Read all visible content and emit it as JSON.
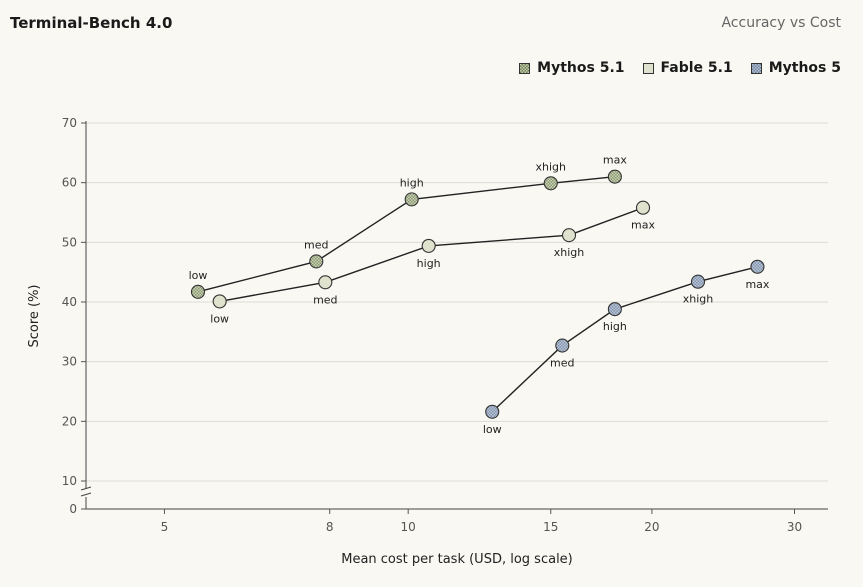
{
  "header": {
    "title": "Terminal-Bench 4.0",
    "subtitle": "Accuracy vs Cost"
  },
  "chart_data": {
    "type": "scatter",
    "title": "Terminal-Bench 4.0",
    "subtitle": "Accuracy vs Cost",
    "xlabel": "Mean cost per task (USD, log scale)",
    "ylabel": "Score (%)",
    "x_scale": "log",
    "xlim": [
      4,
      33
    ],
    "ylim": [
      0,
      70
    ],
    "y_axis_break": [
      0,
      10
    ],
    "x_ticks": [
      5,
      8,
      10,
      15,
      20,
      30
    ],
    "y_ticks": [
      0,
      10,
      20,
      30,
      40,
      50,
      60,
      70
    ],
    "grid": "horizontal",
    "legend_position": "top-right",
    "series": [
      {
        "name": "Mythos 5.1",
        "color": "#c9d3b4",
        "pattern": "checker",
        "points": [
          {
            "x": 5.5,
            "y": 41.7,
            "label": "low",
            "label_pos": "above"
          },
          {
            "x": 7.7,
            "y": 46.8,
            "label": "med",
            "label_pos": "above"
          },
          {
            "x": 10.1,
            "y": 57.2,
            "label": "high",
            "label_pos": "above"
          },
          {
            "x": 15.0,
            "y": 59.9,
            "label": "xhigh",
            "label_pos": "above"
          },
          {
            "x": 18.0,
            "y": 61.0,
            "label": "max",
            "label_pos": "above"
          }
        ]
      },
      {
        "name": "Fable 5.1",
        "color": "#dfe2cc",
        "pattern": "solid",
        "points": [
          {
            "x": 5.85,
            "y": 40.1,
            "label": "low",
            "label_pos": "below"
          },
          {
            "x": 7.9,
            "y": 43.3,
            "label": "med",
            "label_pos": "below"
          },
          {
            "x": 10.6,
            "y": 49.4,
            "label": "high",
            "label_pos": "below"
          },
          {
            "x": 15.8,
            "y": 51.2,
            "label": "xhigh",
            "label_pos": "below"
          },
          {
            "x": 19.5,
            "y": 55.8,
            "label": "max",
            "label_pos": "below"
          }
        ]
      },
      {
        "name": "Mythos 5",
        "color": "#b9c6d8",
        "pattern": "checker",
        "points": [
          {
            "x": 12.7,
            "y": 21.6,
            "label": "low",
            "label_pos": "below"
          },
          {
            "x": 15.5,
            "y": 32.7,
            "label": "med",
            "label_pos": "below"
          },
          {
            "x": 18.0,
            "y": 38.8,
            "label": "high",
            "label_pos": "below"
          },
          {
            "x": 22.8,
            "y": 43.4,
            "label": "xhigh",
            "label_pos": "below"
          },
          {
            "x": 27.0,
            "y": 45.9,
            "label": "max",
            "label_pos": "below"
          }
        ]
      }
    ]
  }
}
